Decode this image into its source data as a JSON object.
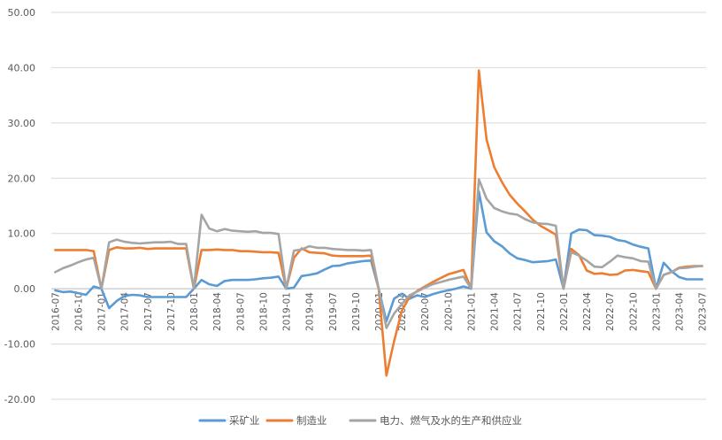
{
  "chart_data": {
    "type": "line",
    "title": "",
    "xlabel": "",
    "ylabel": "",
    "ylim": [
      -20,
      50
    ],
    "yticks": [
      "50.00",
      "40.00",
      "30.00",
      "20.00",
      "10.00",
      "0.00",
      "-10.00",
      "-20.00"
    ],
    "x_tick_labels": [
      "2016-07",
      "2016-10",
      "2017-01",
      "2017-04",
      "2017-07",
      "2017-10",
      "2018-01",
      "2018-04",
      "2018-07",
      "2018-10",
      "2019-01",
      "2019-04",
      "2019-07",
      "2019-10",
      "2020-01",
      "2020-04",
      "2020-07",
      "2020-10",
      "2021-01",
      "2021-04",
      "2021-07",
      "2021-10",
      "2022-01",
      "2022-04",
      "2022-07",
      "2022-10",
      "2023-01",
      "2023-04",
      "2023-07"
    ],
    "x": [
      "2016-07",
      "2016-08",
      "2016-09",
      "2016-10",
      "2016-11",
      "2016-12",
      "2017-01",
      "2017-02",
      "2017-03",
      "2017-04",
      "2017-05",
      "2017-06",
      "2017-07",
      "2017-08",
      "2017-09",
      "2017-10",
      "2017-11",
      "2017-12",
      "2018-01",
      "2018-02",
      "2018-03",
      "2018-04",
      "2018-05",
      "2018-06",
      "2018-07",
      "2018-08",
      "2018-09",
      "2018-10",
      "2018-11",
      "2018-12",
      "2019-01",
      "2019-02",
      "2019-03",
      "2019-04",
      "2019-05",
      "2019-06",
      "2019-07",
      "2019-08",
      "2019-09",
      "2019-10",
      "2019-11",
      "2019-12",
      "2020-01",
      "2020-02",
      "2020-03",
      "2020-04",
      "2020-05",
      "2020-06",
      "2020-07",
      "2020-08",
      "2020-09",
      "2020-10",
      "2020-11",
      "2020-12",
      "2021-01",
      "2021-02",
      "2021-03",
      "2021-04",
      "2021-05",
      "2021-06",
      "2021-07",
      "2021-08",
      "2021-09",
      "2021-10",
      "2021-11",
      "2021-12",
      "2022-01",
      "2022-02",
      "2022-03",
      "2022-04",
      "2022-05",
      "2022-06",
      "2022-07",
      "2022-08",
      "2022-09",
      "2022-10",
      "2022-11",
      "2022-12",
      "2023-01",
      "2023-02",
      "2023-03",
      "2023-04",
      "2023-05",
      "2023-06",
      "2023-07"
    ],
    "series": [
      {
        "name": "采矿业",
        "color": "#5B9BD5",
        "values": [
          -0.3,
          -0.6,
          -0.5,
          -0.8,
          -1.1,
          0.4,
          0.0,
          -3.5,
          -2.2,
          -1.3,
          -1.1,
          -1.2,
          -1.5,
          -1.5,
          -1.5,
          -1.5,
          -1.5,
          -1.5,
          0.0,
          1.6,
          0.8,
          0.5,
          1.4,
          1.6,
          1.6,
          1.6,
          1.7,
          1.9,
          2.0,
          2.2,
          0.0,
          0.2,
          2.3,
          2.5,
          2.8,
          3.5,
          4.1,
          4.2,
          4.6,
          4.8,
          5.0,
          5.1,
          0.0,
          -5.9,
          -1.8,
          -0.9,
          -1.8,
          -1.2,
          -1.5,
          -1.0,
          -0.6,
          -0.3,
          0.0,
          0.4,
          0.0,
          17.6,
          10.2,
          8.6,
          7.7,
          6.4,
          5.5,
          5.2,
          4.8,
          4.9,
          5.0,
          5.3,
          0.0,
          10.0,
          10.7,
          10.6,
          9.7,
          9.6,
          9.4,
          8.8,
          8.6,
          8.0,
          7.6,
          7.3,
          0.0,
          4.7,
          3.2,
          2.1,
          1.7,
          1.7,
          1.7
        ]
      },
      {
        "name": "制造业",
        "color": "#ED7D31",
        "values": [
          7.0,
          7.0,
          7.0,
          7.0,
          7.0,
          6.8,
          0.0,
          7.0,
          7.5,
          7.3,
          7.3,
          7.4,
          7.2,
          7.3,
          7.3,
          7.3,
          7.3,
          7.3,
          0.0,
          7.0,
          7.0,
          7.1,
          7.0,
          7.0,
          6.8,
          6.8,
          6.7,
          6.6,
          6.6,
          6.5,
          0.0,
          5.6,
          7.3,
          6.6,
          6.5,
          6.4,
          6.0,
          5.9,
          5.9,
          5.9,
          5.9,
          6.0,
          0.0,
          -15.7,
          -9.5,
          -4.0,
          -1.5,
          -0.4,
          0.4,
          1.2,
          1.9,
          2.6,
          3.0,
          3.4,
          0.0,
          39.5,
          27.0,
          22.0,
          19.3,
          17.0,
          15.4,
          14.0,
          12.5,
          11.4,
          10.6,
          9.8,
          0.0,
          7.2,
          6.1,
          3.3,
          2.7,
          2.8,
          2.5,
          2.6,
          3.3,
          3.4,
          3.2,
          3.0,
          0.0,
          2.5,
          3.0,
          3.8,
          4.0,
          4.1,
          4.1
        ]
      },
      {
        "name": "电力、燃气及水的生产和供应业",
        "color": "#A5A5A5",
        "values": [
          3.0,
          3.7,
          4.2,
          4.8,
          5.3,
          5.6,
          0.0,
          8.4,
          8.9,
          8.5,
          8.3,
          8.2,
          8.3,
          8.4,
          8.4,
          8.5,
          8.1,
          8.1,
          0.0,
          13.4,
          10.9,
          10.4,
          10.8,
          10.5,
          10.4,
          10.3,
          10.4,
          10.1,
          10.1,
          9.9,
          0.0,
          6.9,
          7.1,
          7.7,
          7.4,
          7.4,
          7.2,
          7.1,
          7.0,
          7.0,
          6.9,
          7.0,
          0.0,
          -7.1,
          -4.5,
          -2.8,
          -1.2,
          -0.5,
          0.2,
          0.8,
          1.2,
          1.6,
          1.9,
          2.2,
          0.0,
          19.8,
          16.3,
          14.6,
          14.0,
          13.6,
          13.4,
          12.6,
          12.0,
          11.8,
          11.7,
          11.4,
          0.0,
          6.6,
          6.0,
          5.1,
          4.0,
          3.9,
          4.9,
          6.0,
          5.7,
          5.5,
          5.0,
          4.9,
          0.0,
          2.5,
          3.0,
          3.7,
          3.8,
          4.0,
          4.1
        ]
      }
    ],
    "legend_position": "bottom-center",
    "grid": "horizontal"
  }
}
